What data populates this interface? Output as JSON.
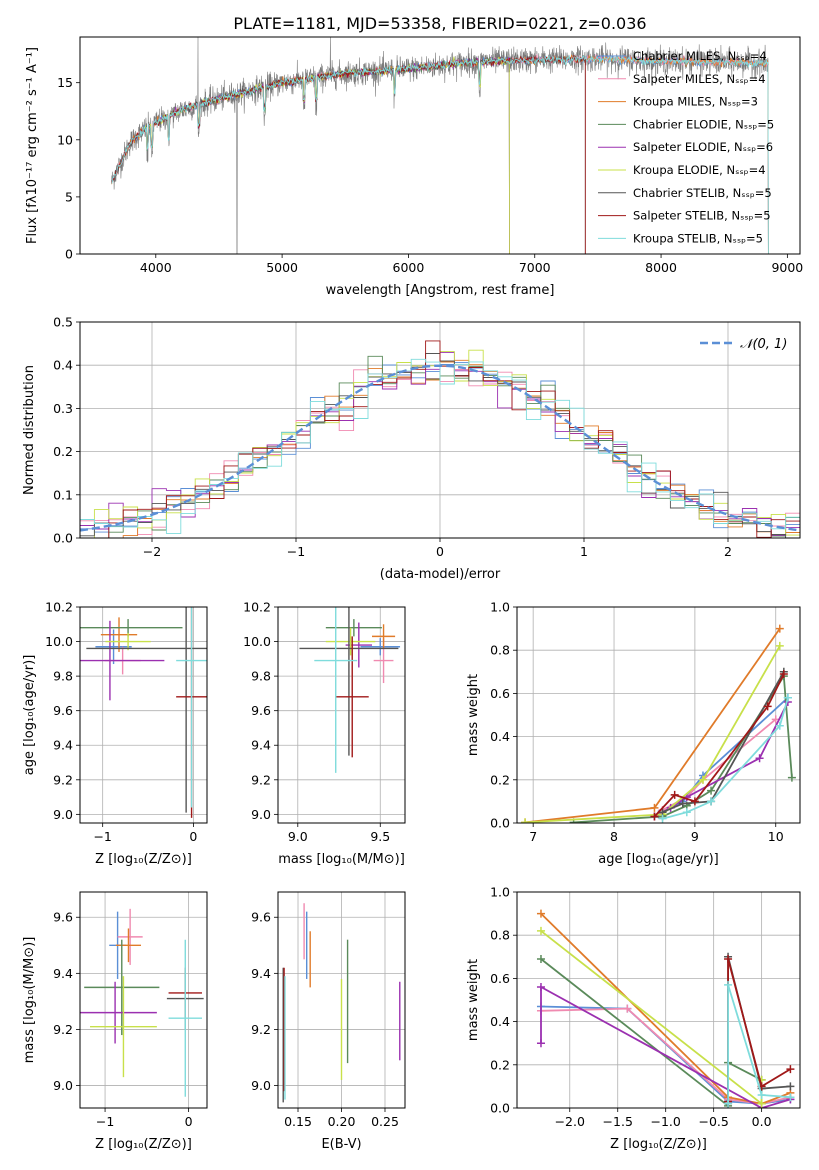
{
  "figure_title": "PLATE=1181, MJD=53358, FIBERID=0221, z=0.036",
  "colors": {
    "chabrier_miles": "#5b8fd6",
    "salpeter_miles": "#f08ab0",
    "kroupa_miles": "#e07b2a",
    "chabrier_elodie": "#5a8a5a",
    "salpeter_elodie": "#9b30b0",
    "kroupa_elodie": "#c8e04a",
    "chabrier_stelib": "#555555",
    "salpeter_stelib": "#a01818",
    "kroupa_stelib": "#7fdcdc",
    "gaussian": "#5b8fd6",
    "grid": "#b0b0b0"
  },
  "chart_data": [
    {
      "id": "spectrum",
      "type": "line",
      "xlabel": "wavelength [Angstrom, rest frame]",
      "ylabel": "Flux [fλ10⁻¹⁷ erg cm⁻² s⁻¹ A⁻¹]",
      "xlim": [
        3400,
        9100
      ],
      "ylim": [
        0,
        19
      ],
      "xticks": [
        "4000",
        "5000",
        "6000",
        "7000",
        "8000",
        "9000"
      ],
      "yticks": [
        "0",
        "5",
        "10",
        "15"
      ],
      "grid": false,
      "legend_position": "top-right",
      "legend": [
        "Chabrier MILES, Nₛₛₚ=4",
        "Salpeter MILES, Nₛₛₚ=4",
        "Kroupa MILES, Nₛₛₚ=3",
        "Chabrier ELODIE, Nₛₛₚ=5",
        "Salpeter ELODIE, Nₛₛₚ=6",
        "Kroupa ELODIE, Nₛₛₚ=4",
        "Chabrier STELIB, Nₛₛₚ=5",
        "Salpeter STELIB, Nₛₛₚ=5",
        "Kroupa STELIB, Nₛₛₚ=5"
      ],
      "continuum": {
        "x": [
          3650,
          3700,
          3800,
          3900,
          4000,
          4200,
          4500,
          5000,
          5500,
          6000,
          6500,
          7000,
          7500,
          8000,
          8500,
          8850
        ],
        "y": [
          6.3,
          7.5,
          9.8,
          10.8,
          11.5,
          12.6,
          13.6,
          15.0,
          15.8,
          16.2,
          16.8,
          17.0,
          17.1,
          16.9,
          16.8,
          16.7
        ]
      },
      "model_ranges": [
        [
          3650,
          8850
        ],
        [
          3650,
          8850
        ],
        [
          3650,
          8850
        ],
        [
          3900,
          6800
        ],
        [
          3900,
          6800
        ],
        [
          3900,
          6800
        ],
        [
          3650,
          7400
        ],
        [
          3650,
          7400
        ],
        [
          3650,
          8850
        ]
      ]
    },
    {
      "id": "residuals",
      "type": "line",
      "xlabel": "(data-model)/error",
      "ylabel": "Normed distribution",
      "xlim": [
        -2.5,
        2.5
      ],
      "ylim": [
        0,
        0.5
      ],
      "xticks": [
        "−2",
        "−1",
        "0",
        "1",
        "2"
      ],
      "yticks": [
        "0.0",
        "0.1",
        "0.2",
        "0.3",
        "0.4",
        "0.5"
      ],
      "grid": true,
      "legend_position": "top-right",
      "legend": [
        "𝒩(0, 1)"
      ],
      "gaussian": {
        "mean": 0,
        "sigma": 1
      },
      "bin_width": 0.1
    },
    {
      "id": "age-vs-z",
      "type": "scatter",
      "xlabel": "Z [log₁₀(Z/Z⊙)]",
      "ylabel": "age  [log₁₀(age/yr)]",
      "xlim": [
        -1.25,
        0.15
      ],
      "ylim": [
        8.95,
        10.2
      ],
      "xticks": [
        "−1",
        "0"
      ],
      "yticks": [
        "9.0",
        "9.2",
        "9.4",
        "9.6",
        "9.8",
        "10.0",
        "10.2"
      ],
      "grid": true,
      "points": [
        {
          "x": -0.88,
          "y": 9.97,
          "xerr": 0.2,
          "yerr": 0.1
        },
        {
          "x": -0.78,
          "y": 9.89,
          "xerr": 0.2,
          "yerr": 0.08
        },
        {
          "x": -0.82,
          "y": 10.04,
          "xerr": 0.2,
          "yerr": 0.1
        },
        {
          "x": -0.72,
          "y": 10.08,
          "xerr": 0.6,
          "yerr": 0.05
        },
        {
          "x": -0.92,
          "y": 9.89,
          "xerr": 0.6,
          "yerr": 0.23
        },
        {
          "x": -0.72,
          "y": 10.0,
          "xerr": 0.25,
          "yerr": 0.05
        },
        {
          "x": -0.08,
          "y": 9.96,
          "xerr": 1.1,
          "yerr": 0.95
        },
        {
          "x": -0.02,
          "y": 9.68,
          "xerr": 0.17,
          "yerr": 0.7
        },
        {
          "x": -0.02,
          "y": 9.89,
          "xerr": 0.17,
          "yerr": 0.85
        }
      ]
    },
    {
      "id": "age-vs-mass",
      "type": "scatter",
      "xlabel": "mass [log₁₀(M/M⊙)]",
      "ylabel": "",
      "xlim": [
        8.88,
        9.65
      ],
      "ylim": [
        8.95,
        10.2
      ],
      "xticks": [
        "9.0",
        "9.5"
      ],
      "yticks": [
        "9.0",
        "9.2",
        "9.4",
        "9.6",
        "9.8",
        "10.0",
        "10.2"
      ],
      "grid": true,
      "points": [
        {
          "x": 9.5,
          "y": 9.97,
          "xerr": 0.12,
          "yerr": 0.05
        },
        {
          "x": 9.52,
          "y": 9.89,
          "xerr": 0.06,
          "yerr": 0.13
        },
        {
          "x": 9.52,
          "y": 10.03,
          "xerr": 0.07,
          "yerr": 0.07
        },
        {
          "x": 9.34,
          "y": 10.08,
          "xerr": 0.17,
          "yerr": 0.05
        },
        {
          "x": 9.37,
          "y": 9.98,
          "xerr": 0.08,
          "yerr": 0.13
        },
        {
          "x": 9.32,
          "y": 10.0,
          "xerr": 0.15,
          "yerr": 0.08
        },
        {
          "x": 9.31,
          "y": 9.96,
          "xerr": 0.3,
          "yerr": 0.62
        },
        {
          "x": 9.33,
          "y": 9.68,
          "xerr": 0.1,
          "yerr": 0.35
        },
        {
          "x": 9.23,
          "y": 9.89,
          "xerr": 0.13,
          "yerr": 0.65
        }
      ]
    },
    {
      "id": "mass-weight-vs-age",
      "type": "line",
      "xlabel": "age  [log₁₀(age/yr)]",
      "ylabel": "mass weight",
      "xlim": [
        6.8,
        10.3
      ],
      "ylim": [
        0,
        1
      ],
      "xticks": [
        "7",
        "8",
        "9",
        "10"
      ],
      "yticks": [
        "0.0",
        "0.2",
        "0.4",
        "0.6",
        "0.8",
        "1.0"
      ],
      "grid": true,
      "series": [
        {
          "x": [
            8.55,
            8.85,
            9.1,
            10.15
          ],
          "y": [
            0.04,
            0.1,
            0.22,
            0.58
          ]
        },
        {
          "x": [
            8.6,
            8.9,
            9.1,
            10.0
          ],
          "y": [
            0.06,
            0.12,
            0.2,
            0.48
          ]
        },
        {
          "x": [
            6.9,
            8.5,
            10.05
          ],
          "y": [
            0.003,
            0.07,
            0.9
          ]
        },
        {
          "x": [
            7.5,
            8.6,
            8.9,
            9.2,
            10.1,
            10.2
          ],
          "y": [
            0.003,
            0.03,
            0.08,
            0.15,
            0.68,
            0.21
          ]
        },
        {
          "x": [
            8.5,
            8.7,
            8.9,
            9.8,
            10.15
          ],
          "y": [
            0.03,
            0.07,
            0.12,
            0.3,
            0.56
          ]
        },
        {
          "x": [
            6.9,
            8.6,
            9.1,
            10.05
          ],
          "y": [
            0.003,
            0.04,
            0.2,
            0.82
          ]
        },
        {
          "x": [
            8.6,
            8.85,
            9.2,
            10.1
          ],
          "y": [
            0.05,
            0.09,
            0.1,
            0.7
          ]
        },
        {
          "x": [
            8.5,
            8.75,
            9.0,
            9.9,
            10.1
          ],
          "y": [
            0.03,
            0.13,
            0.1,
            0.54,
            0.69
          ]
        },
        {
          "x": [
            8.6,
            8.9,
            9.2,
            10.05,
            10.15
          ],
          "y": [
            0.02,
            0.05,
            0.1,
            0.45,
            0.58
          ]
        }
      ]
    },
    {
      "id": "mass-vs-z",
      "type": "scatter",
      "xlabel": "Z [log₁₀(Z/Z⊙)]",
      "ylabel": "mass [log₁₀(M/M⊙)]",
      "xlim": [
        -1.3,
        0.22
      ],
      "ylim": [
        8.92,
        9.69
      ],
      "xticks": [
        "−1",
        "0"
      ],
      "yticks": [
        "9.0",
        "9.2",
        "9.4",
        "9.6"
      ],
      "grid": true,
      "points": [
        {
          "x": -0.85,
          "y": 9.5,
          "xerr": 0.1,
          "yerr": 0.12
        },
        {
          "x": -0.7,
          "y": 9.53,
          "xerr": 0.15,
          "yerr": 0.1
        },
        {
          "x": -0.72,
          "y": 9.5,
          "xerr": 0.15,
          "yerr": 0.06
        },
        {
          "x": -0.8,
          "y": 9.35,
          "xerr": 0.45,
          "yerr": 0.17
        },
        {
          "x": -0.88,
          "y": 9.26,
          "xerr": 0.5,
          "yerr": 0.11
        },
        {
          "x": -0.78,
          "y": 9.21,
          "xerr": 0.4,
          "yerr": 0.18
        },
        {
          "x": -0.04,
          "y": 9.31,
          "xerr": 0.22,
          "yerr": 0.11
        },
        {
          "x": -0.04,
          "y": 9.33,
          "xerr": 0.2,
          "yerr": 0.09
        },
        {
          "x": -0.04,
          "y": 9.24,
          "xerr": 0.2,
          "yerr": 0.28
        }
      ]
    },
    {
      "id": "mass-vs-ebv",
      "type": "scatter",
      "xlabel": "E(B-V)",
      "ylabel": "",
      "xlim": [
        0.127,
        0.273
      ],
      "ylim": [
        8.92,
        9.69
      ],
      "xticks": [
        "0.15",
        "0.20",
        "0.25"
      ],
      "yticks": [
        "9.0",
        "9.2",
        "9.4",
        "9.6"
      ],
      "grid": true,
      "points": [
        {
          "x": 0.16,
          "y": 9.5,
          "xerr": 0,
          "yerr": 0.12
        },
        {
          "x": 0.157,
          "y": 9.55,
          "xerr": 0,
          "yerr": 0.1
        },
        {
          "x": 0.164,
          "y": 9.45,
          "xerr": 0,
          "yerr": 0.1
        },
        {
          "x": 0.207,
          "y": 9.3,
          "xerr": 0,
          "yerr": 0.22
        },
        {
          "x": 0.267,
          "y": 9.23,
          "xerr": 0,
          "yerr": 0.14
        },
        {
          "x": 0.2,
          "y": 9.2,
          "xerr": 0,
          "yerr": 0.18
        },
        {
          "x": 0.133,
          "y": 9.18,
          "xerr": 0,
          "yerr": 0.24
        },
        {
          "x": 0.134,
          "y": 9.2,
          "xerr": 0,
          "yerr": 0.22
        },
        {
          "x": 0.135,
          "y": 9.17,
          "xerr": 0,
          "yerr": 0.22
        }
      ]
    },
    {
      "id": "mass-weight-vs-z",
      "type": "line",
      "xlabel": "Z [log₁₀(Z/Z⊙)]",
      "ylabel": "mass weight",
      "xlim": [
        -2.55,
        0.4
      ],
      "ylim": [
        0,
        1
      ],
      "xticks": [
        "−2.0",
        "−1.5",
        "−1.0",
        "−0.5",
        "0.0"
      ],
      "yticks": [
        "0.0",
        "0.2",
        "0.4",
        "0.6",
        "0.8",
        "1.0"
      ],
      "grid": true,
      "series": [
        {
          "x": [
            -2.3,
            -1.4,
            -0.35,
            0.0,
            0.3
          ],
          "y": [
            0.47,
            0.46,
            0.03,
            0.02,
            0.04
          ]
        },
        {
          "x": [
            -2.3,
            -1.4,
            -0.35,
            0.0,
            0.3
          ],
          "y": [
            0.45,
            0.46,
            0.04,
            0.02,
            0.05
          ]
        },
        {
          "x": [
            -2.3,
            -0.35,
            0.0,
            0.3
          ],
          "y": [
            0.9,
            0.05,
            0.02,
            0.07
          ]
        },
        {
          "x": [
            -2.3,
            -0.35,
            -0.35,
            0.0
          ],
          "y": [
            0.69,
            0.01,
            0.21,
            0.13
          ]
        },
        {
          "x": [
            -2.3,
            -2.3,
            0.0,
            0.3
          ],
          "y": [
            0.3,
            0.56,
            0.0,
            0.04
          ]
        },
        {
          "x": [
            -2.3,
            0.0,
            0.0
          ],
          "y": [
            0.82,
            0.02,
            0.13
          ]
        },
        {
          "x": [
            -0.35,
            -0.35,
            0.0,
            0.3
          ],
          "y": [
            0.02,
            0.7,
            0.09,
            0.1
          ]
        },
        {
          "x": [
            -0.35,
            -0.35,
            0.0,
            0.3
          ],
          "y": [
            0.03,
            0.69,
            0.1,
            0.18
          ]
        },
        {
          "x": [
            -0.35,
            -0.35,
            0.0,
            0.3
          ],
          "y": [
            0.02,
            0.57,
            0.06,
            0.05
          ]
        }
      ]
    }
  ]
}
